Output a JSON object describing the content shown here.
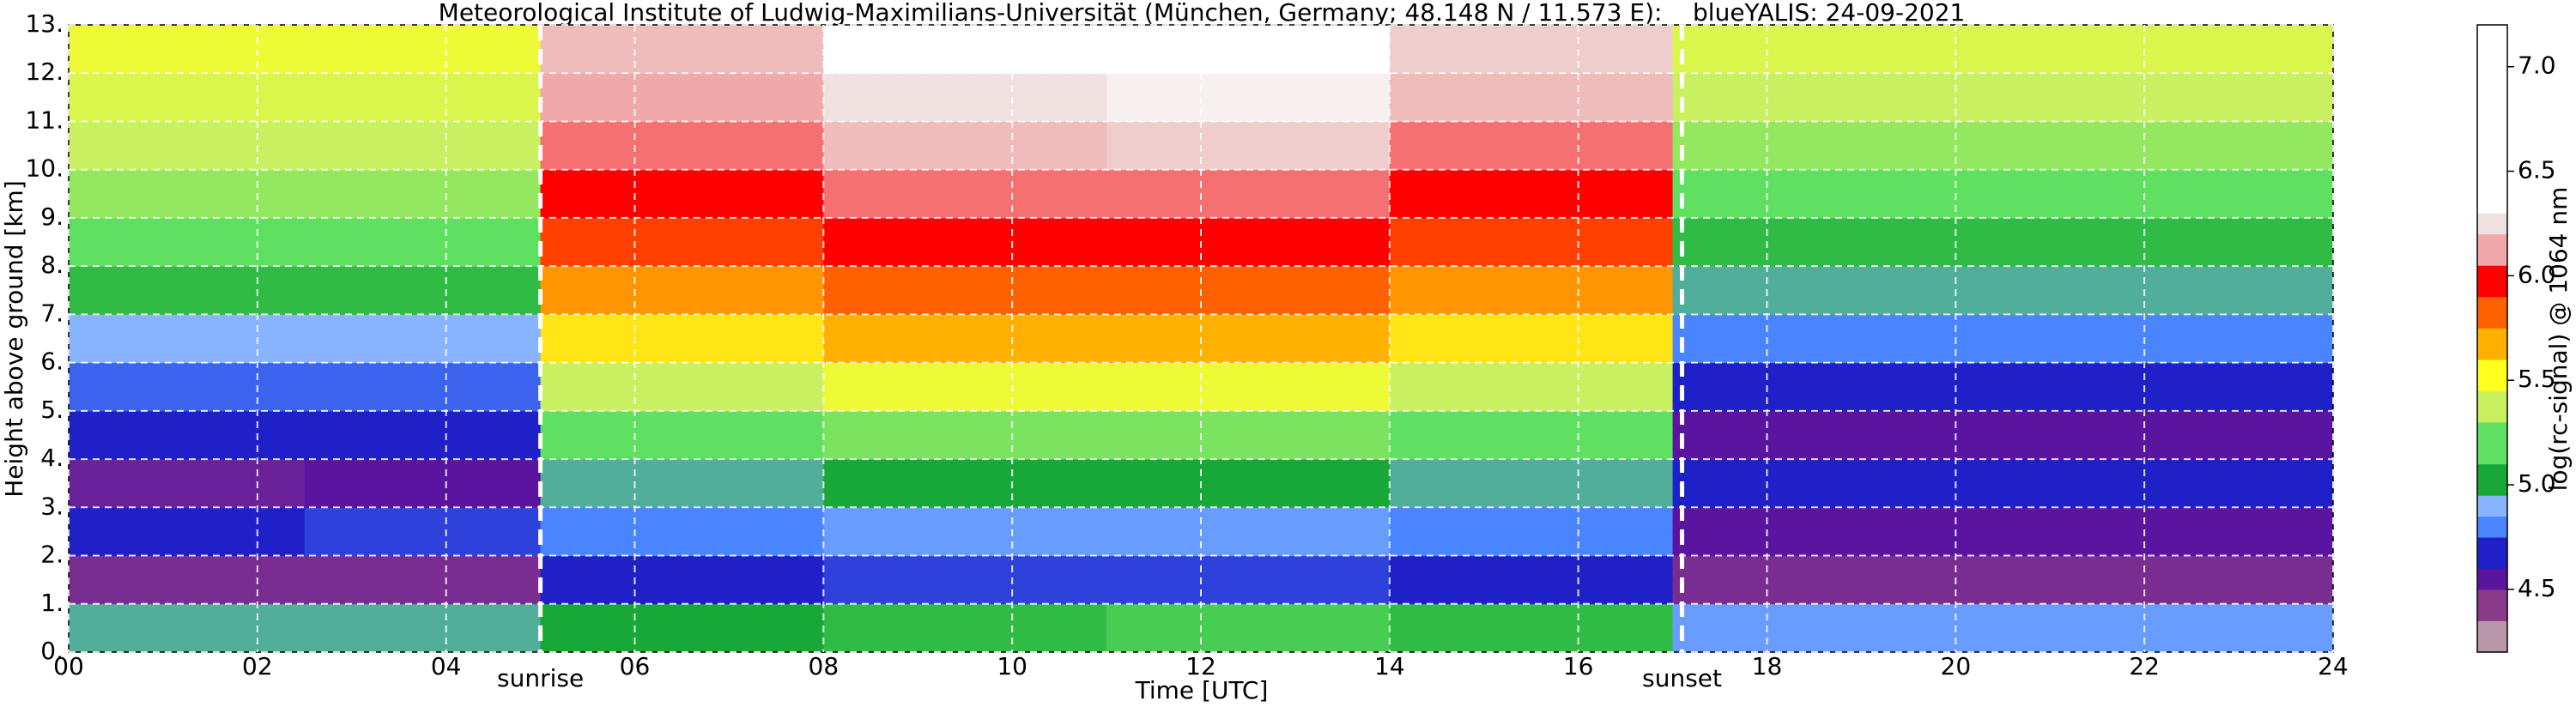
{
  "chart_data": {
    "type": "heatmap",
    "title": "Meteorological Institute of Ludwig-Maximilians-Universität (München, Germany; 48.148 N / 11.573 E):    blueYALIS: 24-09-2021",
    "xlabel": "Time [UTC]",
    "ylabel": "Height above ground [km]",
    "xlim": [
      0,
      24
    ],
    "xticks": [
      {
        "value": 0,
        "label": "00"
      },
      {
        "value": 2,
        "label": "02"
      },
      {
        "value": 4,
        "label": "04"
      },
      {
        "value": 6,
        "label": "06"
      },
      {
        "value": 8,
        "label": "08"
      },
      10,
      12,
      14,
      16,
      18,
      20,
      22,
      24
    ],
    "ylim": [
      0,
      13
    ],
    "yticks": [
      {
        "value": 0,
        "label": "0."
      },
      {
        "value": 1,
        "label": "1."
      },
      {
        "value": 2,
        "label": "2."
      },
      {
        "value": 3,
        "label": "3."
      },
      {
        "value": 4,
        "label": "4."
      },
      {
        "value": 5,
        "label": "5."
      },
      {
        "value": 6,
        "label": "6."
      },
      {
        "value": 7,
        "label": "7."
      },
      {
        "value": 8,
        "label": "8."
      },
      {
        "value": 9,
        "label": "9."
      },
      {
        "value": 10,
        "label": "10."
      },
      {
        "value": 11,
        "label": "11."
      },
      {
        "value": 12,
        "label": "12."
      },
      {
        "value": 13,
        "label": "13."
      }
    ],
    "grid": true,
    "x_edges": [
      0,
      2.5,
      5,
      8,
      11,
      14,
      17,
      20.5,
      24
    ],
    "y_edges": [
      0,
      1,
      2,
      3,
      4,
      5,
      6,
      7,
      8,
      9,
      10,
      11,
      12,
      13
    ],
    "z": [
      [
        4.9,
        4.9,
        4.95,
        5.0,
        5.05,
        5.0,
        4.8,
        4.8
      ],
      [
        4.4,
        4.4,
        4.6,
        4.65,
        4.65,
        4.6,
        4.4,
        4.4
      ],
      [
        4.6,
        4.65,
        4.75,
        4.8,
        4.8,
        4.75,
        4.5,
        4.5
      ],
      [
        4.45,
        4.5,
        4.9,
        4.95,
        4.95,
        4.9,
        4.6,
        4.6
      ],
      [
        4.6,
        4.6,
        5.1,
        5.15,
        5.15,
        5.1,
        4.5,
        4.5
      ],
      [
        4.7,
        4.7,
        5.3,
        5.4,
        5.4,
        5.3,
        4.6,
        4.6
      ],
      [
        4.85,
        4.85,
        5.5,
        5.6,
        5.6,
        5.5,
        4.75,
        4.75
      ],
      [
        5.0,
        5.0,
        5.65,
        5.75,
        5.75,
        5.65,
        4.9,
        4.9
      ],
      [
        5.1,
        5.1,
        5.8,
        5.9,
        5.9,
        5.8,
        5.0,
        5.0
      ],
      [
        5.2,
        5.2,
        5.9,
        6.0,
        6.0,
        5.9,
        5.1,
        5.1
      ],
      [
        5.3,
        5.3,
        6.0,
        6.1,
        6.15,
        6.0,
        5.2,
        5.2
      ],
      [
        5.35,
        5.35,
        6.05,
        6.2,
        6.25,
        6.1,
        5.3,
        5.3
      ],
      [
        5.4,
        5.4,
        6.1,
        6.3,
        6.3,
        6.15,
        5.35,
        5.35
      ]
    ],
    "annotations": [
      {
        "text": "sunrise",
        "x": 5.0
      },
      {
        "text": "sunset",
        "x": 17.1
      }
    ],
    "colorbar": {
      "label": "log(rc-signal) @ 1064 nm",
      "lim": [
        4.2,
        7.2
      ],
      "ticks": [
        4.5,
        {
          "value": 5,
          "label": "5.0"
        },
        5.5,
        {
          "value": 6,
          "label": "6.0"
        },
        6.5,
        {
          "value": 7,
          "label": "7.0"
        }
      ],
      "stops": [
        {
          "value": 4.2,
          "color": "#b898a8"
        },
        {
          "value": 4.35,
          "color": "#8a3a8a"
        },
        {
          "value": 4.5,
          "color": "#5a14a0"
        },
        {
          "value": 4.6,
          "color": "#2020c8"
        },
        {
          "value": 4.75,
          "color": "#4a84ff"
        },
        {
          "value": 4.85,
          "color": "#88b4ff"
        },
        {
          "value": 4.95,
          "color": "#18a838"
        },
        {
          "value": 5.1,
          "color": "#60e060"
        },
        {
          "value": 5.3,
          "color": "#c8f060"
        },
        {
          "value": 5.45,
          "color": "#ffff20"
        },
        {
          "value": 5.6,
          "color": "#ffb000"
        },
        {
          "value": 5.75,
          "color": "#ff6000"
        },
        {
          "value": 5.9,
          "color": "#ff0000"
        },
        {
          "value": 6.05,
          "color": "#f0a8a8"
        },
        {
          "value": 6.2,
          "color": "#f0e0e0"
        },
        {
          "value": 6.3,
          "color": "#ffffff"
        }
      ]
    }
  }
}
